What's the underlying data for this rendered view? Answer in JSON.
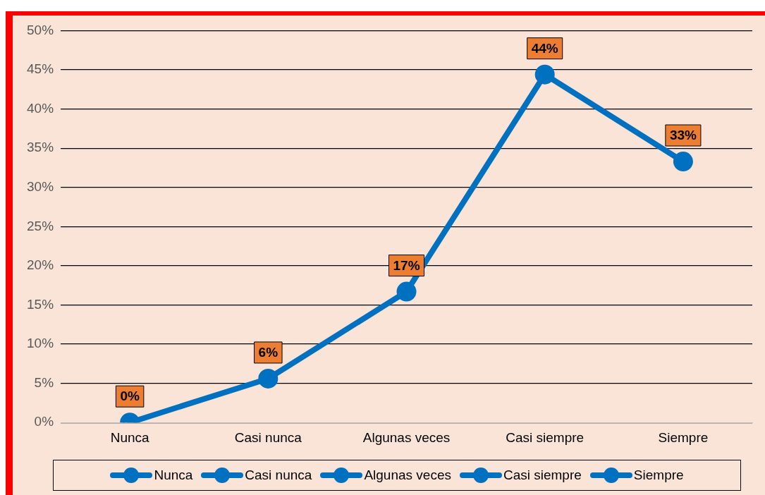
{
  "chart_data": {
    "type": "line",
    "categories": [
      "Nunca",
      "Casi nunca",
      "Algunas veces",
      "Casi siempre",
      "Siempre"
    ],
    "series": [
      {
        "color": "#0070c0",
        "values": [
          0,
          5.6,
          16.7,
          44.4,
          33.3
        ],
        "value_labels": [
          "0%",
          "6%",
          "17%",
          "44%",
          "33%"
        ]
      }
    ],
    "ylim": [
      0,
      50
    ],
    "yticks": [
      {
        "value": 0,
        "label": "0%"
      },
      {
        "value": 5,
        "label": "5%"
      },
      {
        "value": 10,
        "label": "10%"
      },
      {
        "value": 15,
        "label": "15%"
      },
      {
        "value": 20,
        "label": "20%"
      },
      {
        "value": 25,
        "label": "25%"
      },
      {
        "value": 30,
        "label": "30%"
      },
      {
        "value": 35,
        "label": "35%"
      },
      {
        "value": 40,
        "label": "40%"
      },
      {
        "value": 45,
        "label": "45%"
      },
      {
        "value": 50,
        "label": "50%"
      }
    ],
    "grid": "y",
    "marker": "circle",
    "line_style": "solid"
  }
}
